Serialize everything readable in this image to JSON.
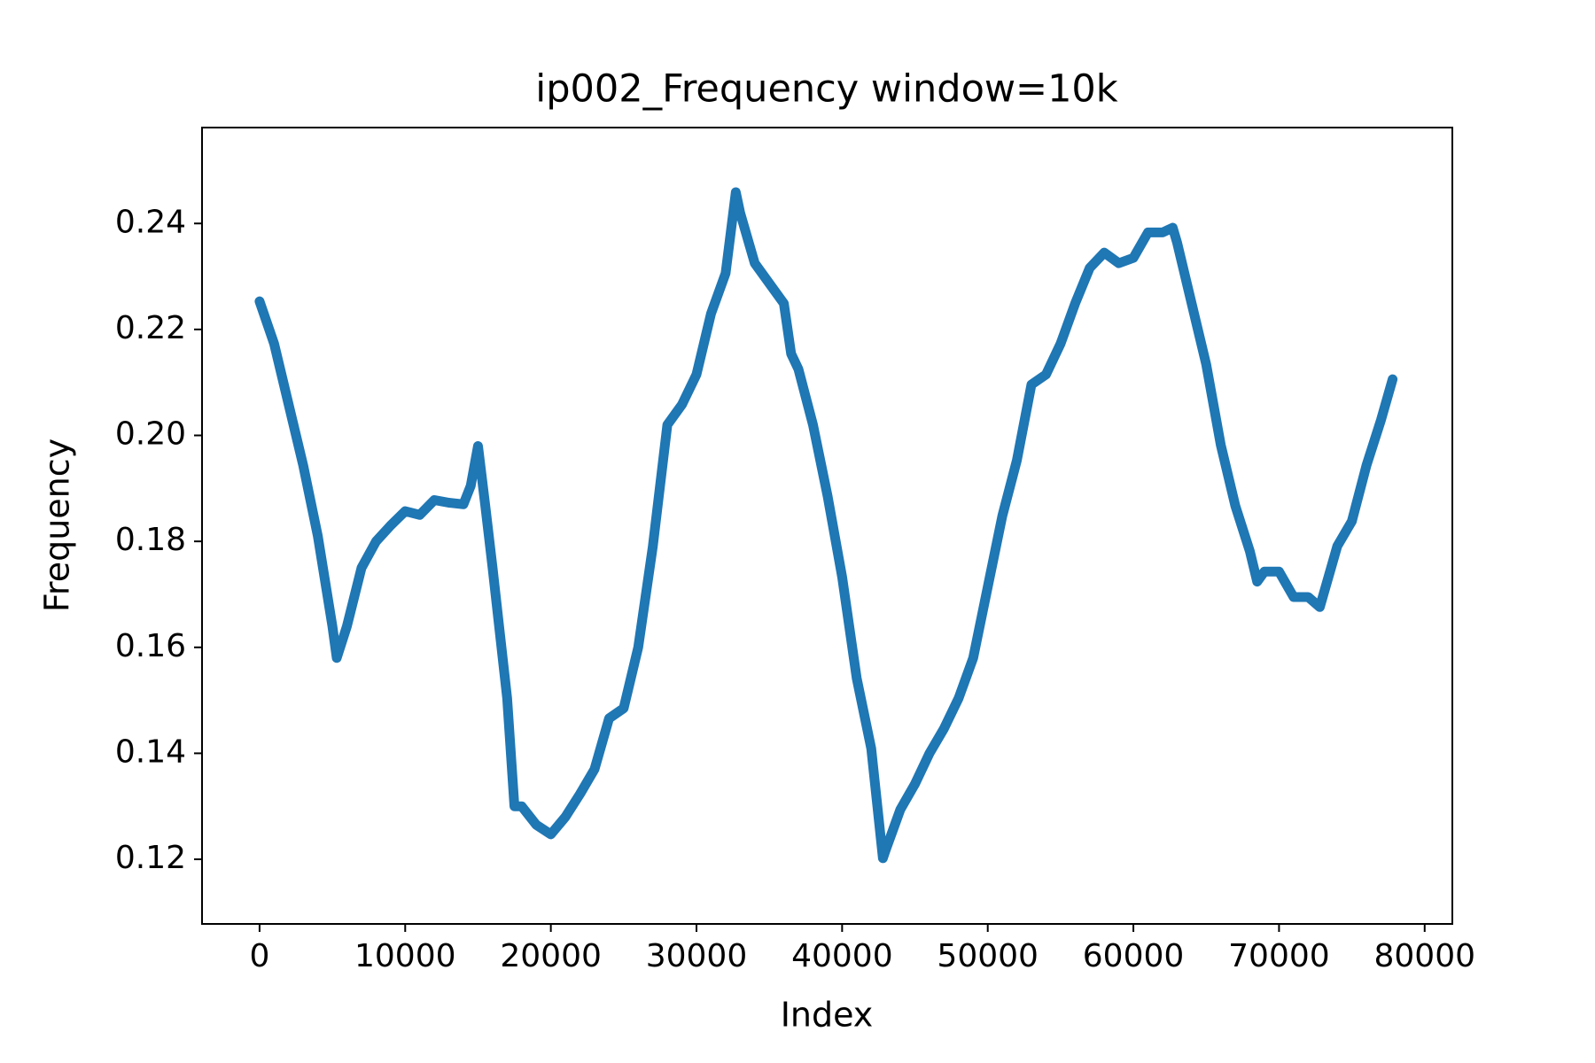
{
  "chart_data": {
    "type": "line",
    "title": "ip002_Frequency window=10k",
    "x_label": "Index",
    "y_label": "Frequency",
    "color": "#1f77b4",
    "x": [
      0,
      1000,
      2000,
      3000,
      4000,
      5000,
      5300,
      6000,
      7000,
      8000,
      9000,
      10000,
      11000,
      12000,
      13000,
      14000,
      14500,
      15000,
      15500,
      16000,
      17000,
      17500,
      18000,
      19000,
      20000,
      21000,
      22000,
      23000,
      24000,
      25000,
      26000,
      27000,
      28000,
      29000,
      30000,
      31000,
      32000,
      32700,
      33000,
      34000,
      35000,
      36000,
      36500,
      37000,
      38000,
      39000,
      40000,
      41000,
      42000,
      42800,
      43000,
      44000,
      45000,
      46000,
      47000,
      48000,
      49000,
      50000,
      51000,
      52000,
      53000,
      54000,
      55000,
      56000,
      57000,
      58000,
      59000,
      60000,
      61000,
      62000,
      62700,
      63000,
      64000,
      65000,
      66000,
      67000,
      68000,
      68500,
      69000,
      70000,
      71000,
      72000,
      72800,
      73000,
      74000,
      75000,
      76000,
      77000,
      77800
    ],
    "values": [
      0.2253,
      0.2173,
      0.2058,
      0.1943,
      0.181,
      0.164,
      0.158,
      0.164,
      0.175,
      0.18,
      0.183,
      0.1857,
      0.185,
      0.1878,
      0.1873,
      0.187,
      0.1905,
      0.198,
      0.1867,
      0.175,
      0.1504,
      0.13,
      0.13,
      0.1265,
      0.1247,
      0.128,
      0.1323,
      0.137,
      0.1466,
      0.1485,
      0.16,
      0.179,
      0.202,
      0.2058,
      0.2115,
      0.223,
      0.2306,
      0.2459,
      0.242,
      0.2325,
      0.2287,
      0.2249,
      0.2154,
      0.2125,
      0.202,
      0.1886,
      0.1733,
      0.1542,
      0.1409,
      0.1202,
      0.1218,
      0.1294,
      0.1342,
      0.14,
      0.1447,
      0.1504,
      0.158,
      0.1714,
      0.1848,
      0.1953,
      0.2096,
      0.2115,
      0.2173,
      0.2249,
      0.2316,
      0.2345,
      0.2325,
      0.2335,
      0.2383,
      0.2383,
      0.2392,
      0.2364,
      0.2249,
      0.2134,
      0.1982,
      0.1867,
      0.1781,
      0.1724,
      0.1743,
      0.1743,
      0.1695,
      0.1695,
      0.1676,
      0.1695,
      0.1791,
      0.1838,
      0.1943,
      0.2029,
      0.2106
    ],
    "xlim": [
      -3950,
      81900
    ],
    "ylim": [
      0.1078,
      0.2581
    ],
    "xticks": [
      0,
      10000,
      20000,
      30000,
      40000,
      50000,
      60000,
      70000,
      80000
    ],
    "yticks": [
      0.12,
      0.14,
      0.16,
      0.18,
      {
        "value": 0.2,
        "label": "0.20"
      },
      0.22,
      0.24
    ]
  }
}
